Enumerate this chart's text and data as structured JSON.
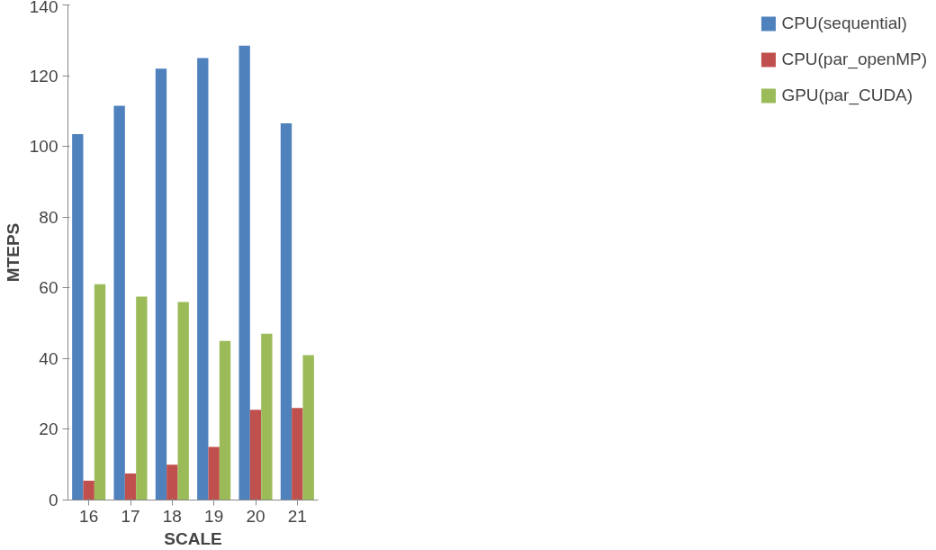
{
  "chart_data": {
    "type": "bar",
    "xlabel": "SCALE",
    "ylabel": "MTEPS",
    "categories": [
      "16",
      "17",
      "18",
      "19",
      "20",
      "21"
    ],
    "series": [
      {
        "name": "CPU(sequential)",
        "color": "#4f81bd",
        "values": [
          103.5,
          111.5,
          122,
          125,
          128.5,
          106.5
        ]
      },
      {
        "name": "CPU(par_openMP)",
        "color": "#c0504d",
        "values": [
          5.5,
          7.5,
          10,
          15,
          25.5,
          26
        ]
      },
      {
        "name": "GPU(par_CUDA)",
        "color": "#9bbb59",
        "values": [
          61,
          57.5,
          56,
          45,
          47,
          41
        ]
      }
    ],
    "ylim": [
      0,
      140
    ],
    "yticks": [
      0,
      20,
      40,
      60,
      80,
      100,
      120,
      140
    ],
    "grid": false,
    "legend": "right"
  }
}
